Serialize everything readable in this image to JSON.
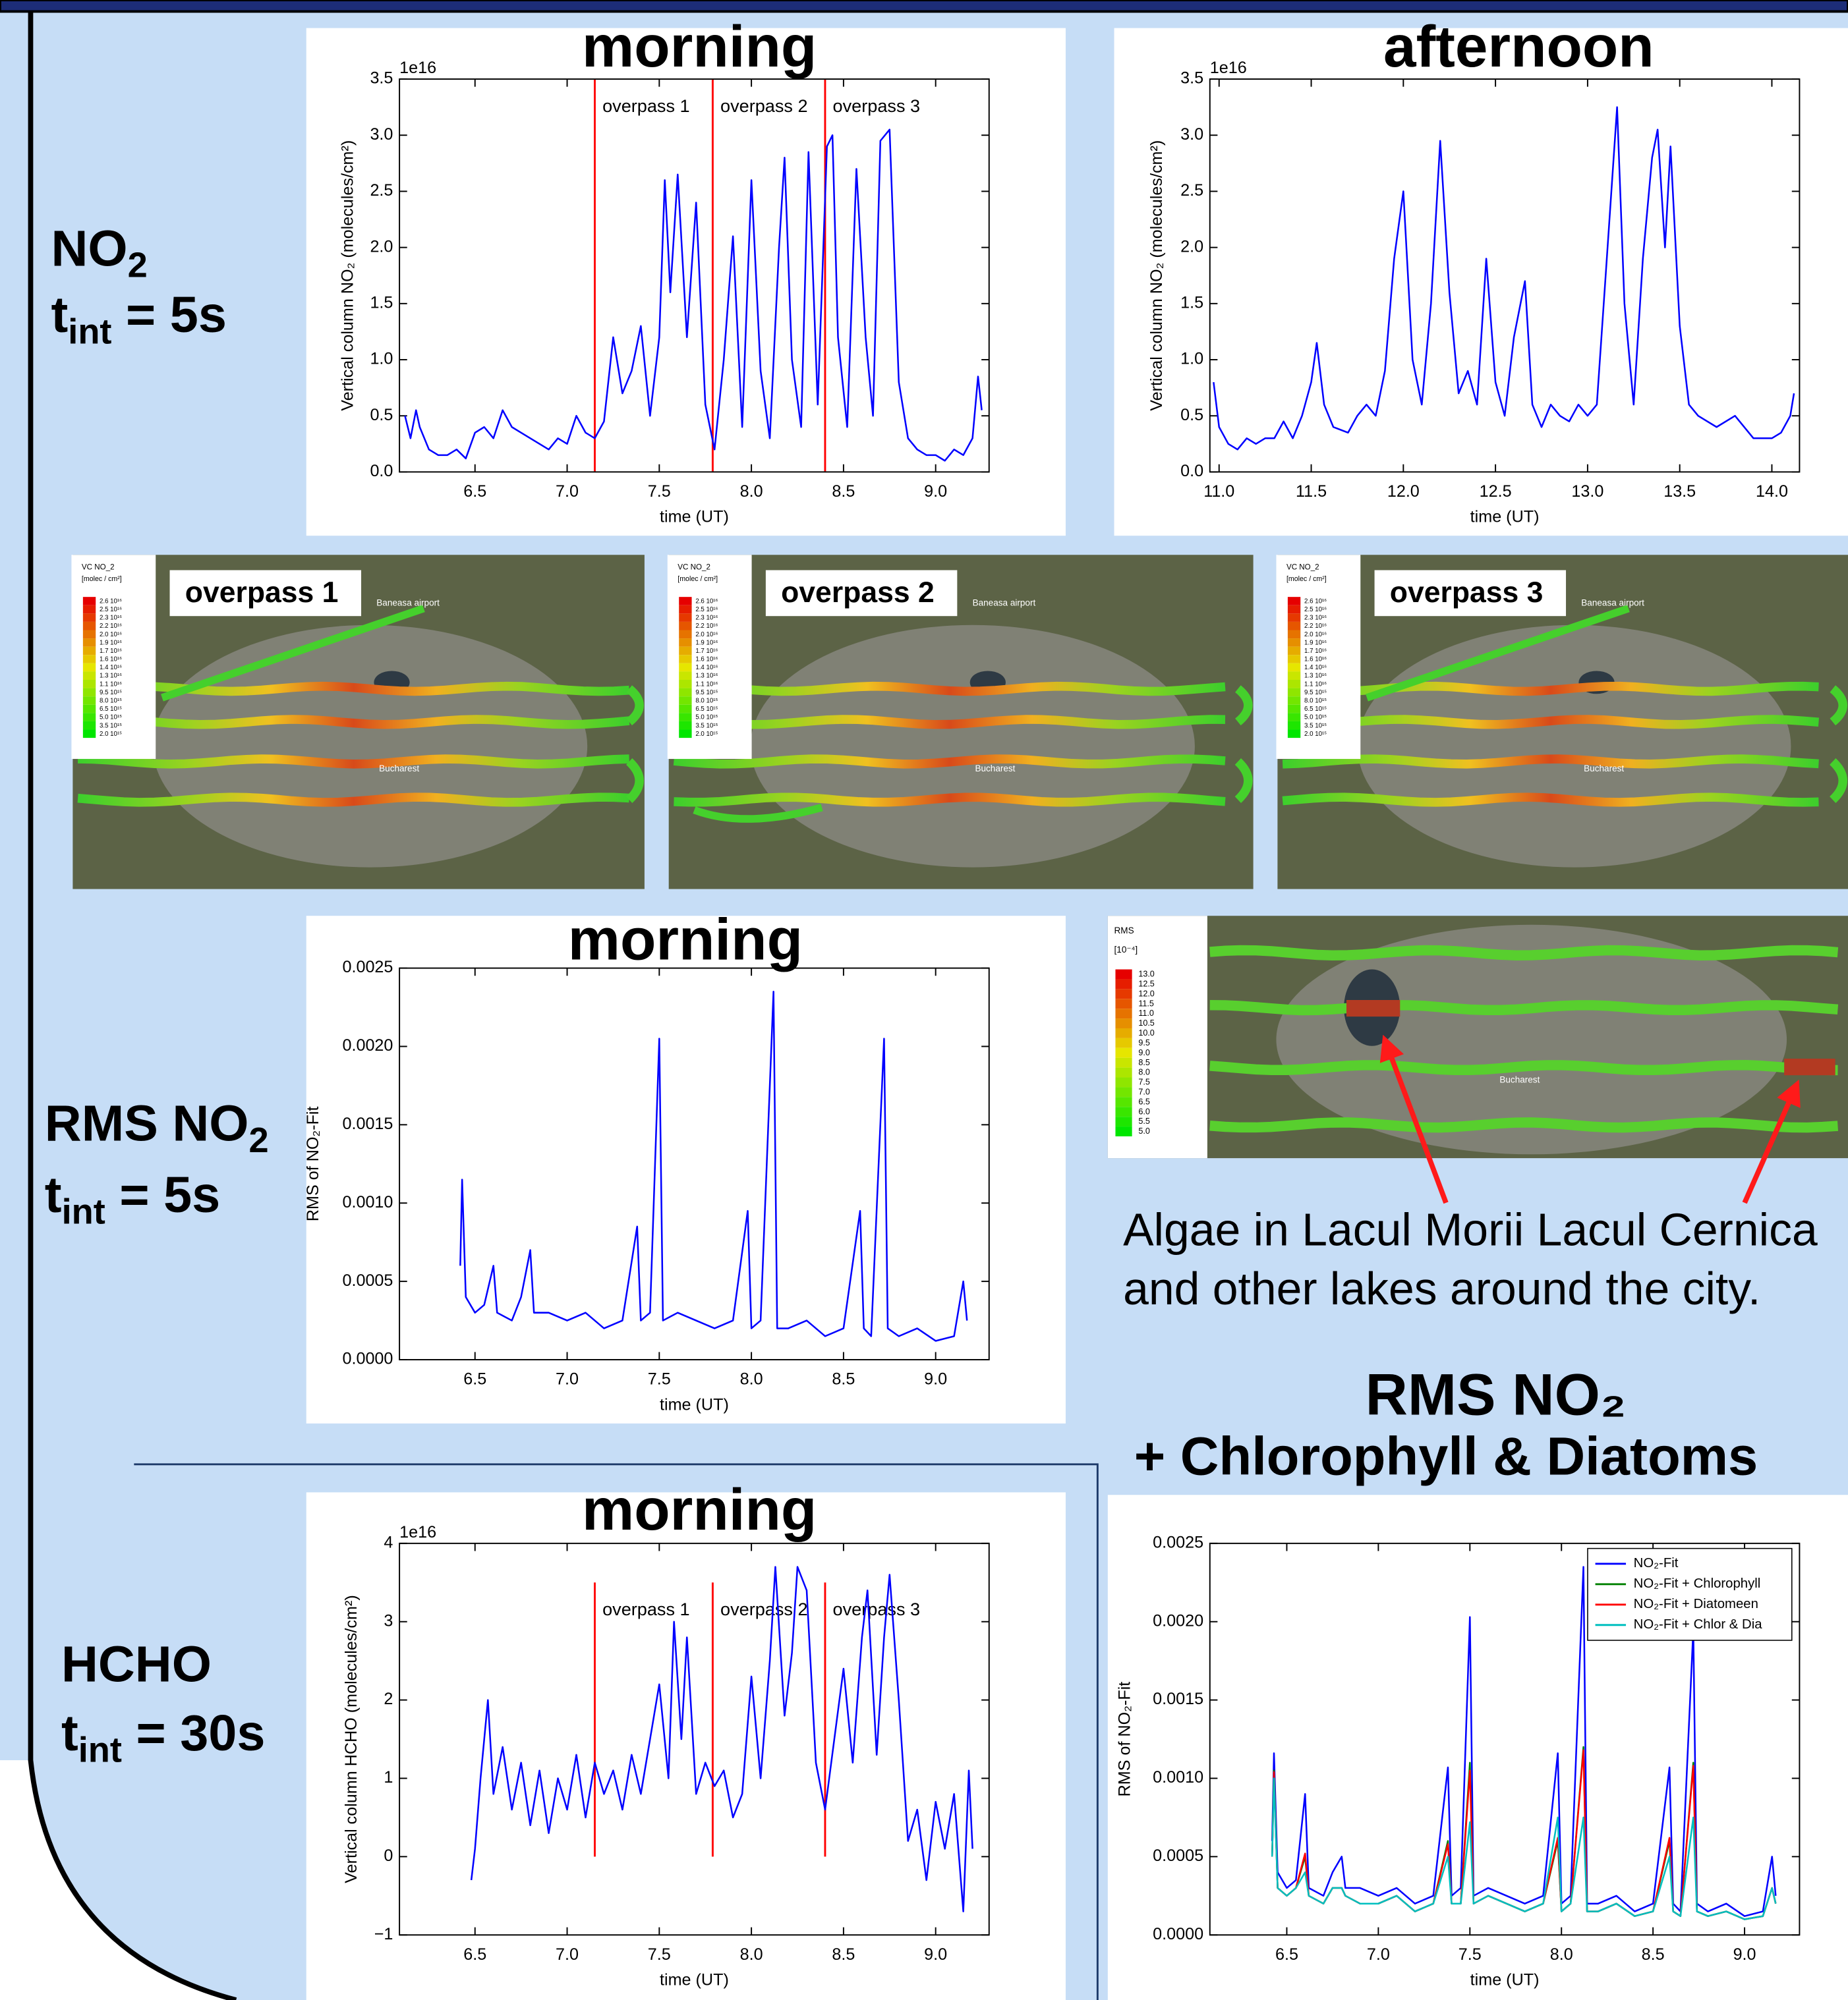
{
  "chart_data": [
    {
      "type": "line",
      "title": "morning",
      "offset_label": "1e16",
      "xlabel": "time (UT)",
      "ylabel": "Vertical column NO₂ (molecules/cm²)",
      "xlim": [
        6.09,
        9.29
      ],
      "ylim": [
        0,
        3.5
      ],
      "xticks": [
        6.5,
        {
          "value": 7,
          "label": "7.0"
        },
        7.5,
        {
          "value": 8,
          "label": "8.0"
        },
        8.5,
        {
          "value": 9,
          "label": "9.0"
        }
      ],
      "yticks": [
        {
          "value": 0,
          "label": "0.0"
        },
        0.5,
        {
          "value": 1,
          "label": "1.0"
        },
        1.5,
        {
          "value": 2,
          "label": "2.0"
        },
        2.5,
        {
          "value": 3,
          "label": "3.0"
        },
        3.5
      ],
      "grid": false,
      "vline_color": "#ff0000",
      "vlines": [
        {
          "x": 7.15,
          "label": "overpass 1"
        },
        {
          "x": 7.79,
          "label": "overpass 2"
        },
        {
          "x": 8.4,
          "label": "overpass 3"
        }
      ],
      "x": [
        6.12,
        6.15,
        6.18,
        6.2,
        6.25,
        6.3,
        6.35,
        6.4,
        6.45,
        6.5,
        6.55,
        6.6,
        6.65,
        6.7,
        6.75,
        6.8,
        6.85,
        6.9,
        6.95,
        7.0,
        7.05,
        7.1,
        7.15,
        7.2,
        7.25,
        7.3,
        7.35,
        7.4,
        7.45,
        7.5,
        7.53,
        7.56,
        7.6,
        7.65,
        7.7,
        7.75,
        7.8,
        7.85,
        7.9,
        7.95,
        8.0,
        8.05,
        8.1,
        8.15,
        8.18,
        8.22,
        8.27,
        8.31,
        8.36,
        8.41,
        8.44,
        8.47,
        8.52,
        8.57,
        8.62,
        8.66,
        8.7,
        8.75,
        8.8,
        8.85,
        8.9,
        8.95,
        9.0,
        9.05,
        9.1,
        9.15,
        9.2,
        9.23,
        9.25
      ],
      "series": [
        {
          "color": "#0000ff",
          "values": [
            0.5,
            0.3,
            0.55,
            0.4,
            0.2,
            0.15,
            0.15,
            0.2,
            0.12,
            0.35,
            0.4,
            0.3,
            0.55,
            0.4,
            0.35,
            0.3,
            0.25,
            0.2,
            0.3,
            0.25,
            0.5,
            0.35,
            0.3,
            0.45,
            1.2,
            0.7,
            0.9,
            1.3,
            0.5,
            1.2,
            2.6,
            1.6,
            2.65,
            1.2,
            2.4,
            0.6,
            0.2,
            1.0,
            2.1,
            0.4,
            2.6,
            0.9,
            0.3,
            2.0,
            2.8,
            1.0,
            0.4,
            2.85,
            0.6,
            2.9,
            3.0,
            1.2,
            0.4,
            2.7,
            1.2,
            0.5,
            2.95,
            3.05,
            0.8,
            0.3,
            0.2,
            0.15,
            0.15,
            0.1,
            0.2,
            0.15,
            0.3,
            0.85,
            0.55
          ]
        }
      ]
    },
    {
      "type": "line",
      "title": "afternoon",
      "offset_label": "1e16",
      "xlabel": "time (UT)",
      "ylabel": "Vertical column NO₂ (molecules/cm²)",
      "xlim": [
        10.95,
        14.15
      ],
      "ylim": [
        0,
        3.5
      ],
      "xticks": [
        {
          "value": 11,
          "label": "11.0"
        },
        11.5,
        {
          "value": 12,
          "label": "12.0"
        },
        12.5,
        {
          "value": 13,
          "label": "13.0"
        },
        13.5,
        {
          "value": 14,
          "label": "14.0"
        }
      ],
      "yticks": [
        {
          "value": 0,
          "label": "0.0"
        },
        0.5,
        {
          "value": 1,
          "label": "1.0"
        },
        1.5,
        {
          "value": 2,
          "label": "2.0"
        },
        2.5,
        {
          "value": 3,
          "label": "3.0"
        },
        3.5
      ],
      "grid": false,
      "x": [
        10.97,
        11.0,
        11.05,
        11.1,
        11.15,
        11.2,
        11.25,
        11.3,
        11.35,
        11.4,
        11.45,
        11.5,
        11.53,
        11.57,
        11.62,
        11.7,
        11.75,
        11.8,
        11.85,
        11.9,
        11.95,
        12.0,
        12.05,
        12.1,
        12.15,
        12.2,
        12.25,
        12.3,
        12.35,
        12.4,
        12.45,
        12.5,
        12.55,
        12.6,
        12.66,
        12.7,
        12.75,
        12.8,
        12.85,
        12.9,
        12.95,
        13.0,
        13.05,
        13.1,
        13.16,
        13.2,
        13.25,
        13.3,
        13.35,
        13.38,
        13.42,
        13.45,
        13.5,
        13.55,
        13.6,
        13.7,
        13.8,
        13.9,
        14.0,
        14.05,
        14.1,
        14.12
      ],
      "series": [
        {
          "color": "#0000ff",
          "values": [
            0.8,
            0.4,
            0.25,
            0.2,
            0.3,
            0.25,
            0.3,
            0.3,
            0.45,
            0.3,
            0.5,
            0.8,
            1.15,
            0.6,
            0.4,
            0.35,
            0.5,
            0.6,
            0.5,
            0.9,
            1.9,
            2.5,
            1.0,
            0.6,
            1.5,
            2.95,
            1.6,
            0.7,
            0.9,
            0.6,
            1.9,
            0.8,
            0.5,
            1.2,
            1.7,
            0.6,
            0.4,
            0.6,
            0.5,
            0.45,
            0.6,
            0.5,
            0.6,
            1.8,
            3.25,
            1.5,
            0.6,
            1.9,
            2.8,
            3.05,
            2.0,
            2.9,
            1.3,
            0.6,
            0.5,
            0.4,
            0.5,
            0.3,
            0.3,
            0.35,
            0.5,
            0.7
          ]
        }
      ]
    },
    {
      "type": "line",
      "title": "morning",
      "xlabel": "time (UT)",
      "ylabel": "RMS of NO₂-Fit",
      "xlim": [
        6.09,
        9.29
      ],
      "ylim": [
        0,
        0.0025
      ],
      "xticks": [
        6.5,
        {
          "value": 7,
          "label": "7.0"
        },
        7.5,
        {
          "value": 8,
          "label": "8.0"
        },
        8.5,
        {
          "value": 9,
          "label": "9.0"
        }
      ],
      "yticks": [
        {
          "value": 0,
          "label": "0.0000"
        },
        0.0005,
        {
          "value": 0.001,
          "label": "0.0010"
        },
        0.0015,
        {
          "value": 0.002,
          "label": "0.0020"
        },
        0.0025
      ],
      "grid": false,
      "x": [
        6.42,
        6.43,
        6.45,
        6.5,
        6.55,
        6.6,
        6.62,
        6.7,
        6.75,
        6.8,
        6.82,
        6.9,
        7.0,
        7.1,
        7.2,
        7.3,
        7.38,
        7.4,
        7.45,
        7.5,
        7.52,
        7.6,
        7.7,
        7.8,
        7.9,
        7.98,
        8.0,
        8.05,
        8.12,
        8.14,
        8.2,
        8.3,
        8.4,
        8.5,
        8.59,
        8.61,
        8.65,
        8.72,
        8.74,
        8.8,
        8.9,
        9.0,
        9.1,
        9.15,
        9.17
      ],
      "series": [
        {
          "color": "#0000ff",
          "values": [
            0.0006,
            0.00115,
            0.0004,
            0.0003,
            0.00035,
            0.0006,
            0.0003,
            0.00025,
            0.0004,
            0.0007,
            0.0003,
            0.0003,
            0.00025,
            0.0003,
            0.0002,
            0.00025,
            0.00085,
            0.00025,
            0.0003,
            0.00205,
            0.00025,
            0.0003,
            0.00025,
            0.0002,
            0.00025,
            0.00095,
            0.0002,
            0.00025,
            0.00235,
            0.0002,
            0.0002,
            0.00025,
            0.00015,
            0.0002,
            0.00095,
            0.0002,
            0.00015,
            0.00205,
            0.0002,
            0.00015,
            0.0002,
            0.00012,
            0.00015,
            0.0005,
            0.00025
          ]
        }
      ]
    },
    {
      "type": "line",
      "title": "morning",
      "offset_label": "1e16",
      "xlabel": "time (UT)",
      "ylabel": "Vertical column HCHO (molecules/cm²)",
      "xlim": [
        6.09,
        9.29
      ],
      "ylim": [
        -1,
        4
      ],
      "xticks": [
        6.5,
        {
          "value": 7,
          "label": "7.0"
        },
        7.5,
        {
          "value": 8,
          "label": "8.0"
        },
        8.5,
        {
          "value": 9,
          "label": "9.0"
        }
      ],
      "yticks": [
        {
          "value": -1,
          "label": "−1"
        },
        0,
        1,
        2,
        3,
        4
      ],
      "grid": false,
      "vline_color": "#ff0000",
      "vline_ylim": [
        0,
        3.5
      ],
      "vlines": [
        {
          "x": 7.15,
          "label": "overpass 1"
        },
        {
          "x": 7.79,
          "label": "overpass 2"
        },
        {
          "x": 8.4,
          "label": "overpass 3"
        }
      ],
      "x": [
        6.48,
        6.5,
        6.53,
        6.57,
        6.6,
        6.65,
        6.7,
        6.75,
        6.8,
        6.85,
        6.9,
        6.95,
        7.0,
        7.05,
        7.1,
        7.15,
        7.2,
        7.25,
        7.3,
        7.35,
        7.4,
        7.45,
        7.5,
        7.55,
        7.58,
        7.62,
        7.65,
        7.7,
        7.75,
        7.8,
        7.85,
        7.9,
        7.95,
        8.0,
        8.05,
        8.1,
        8.13,
        8.18,
        8.22,
        8.25,
        8.3,
        8.35,
        8.4,
        8.45,
        8.5,
        8.55,
        8.6,
        8.63,
        8.68,
        8.72,
        8.75,
        8.8,
        8.85,
        8.9,
        8.95,
        9.0,
        9.05,
        9.1,
        9.15,
        9.18,
        9.2
      ],
      "series": [
        {
          "color": "#0000ff",
          "values": [
            -0.3,
            0.1,
            1.0,
            2.0,
            0.8,
            1.4,
            0.6,
            1.2,
            0.4,
            1.1,
            0.3,
            1.0,
            0.6,
            1.3,
            0.5,
            1.2,
            0.8,
            1.1,
            0.6,
            1.3,
            0.8,
            1.5,
            2.2,
            1.0,
            3.0,
            1.5,
            2.8,
            0.8,
            1.2,
            0.9,
            1.1,
            0.5,
            0.8,
            2.3,
            1.0,
            2.5,
            3.7,
            1.8,
            2.6,
            3.7,
            3.4,
            1.2,
            0.6,
            1.5,
            2.4,
            1.2,
            2.8,
            3.4,
            1.3,
            2.8,
            3.6,
            2.0,
            0.2,
            0.6,
            -0.3,
            0.7,
            0.1,
            0.8,
            -0.7,
            1.1,
            0.1
          ]
        }
      ]
    },
    {
      "type": "line",
      "title": "RMS NO₂",
      "subtitle": "+ Chlorophyll & Diatoms",
      "xlabel": "time (UT)",
      "ylabel": "RMS of NO₂-Fit",
      "xlim": [
        6.08,
        9.3
      ],
      "ylim": [
        0,
        0.0025
      ],
      "xticks": [
        6.5,
        {
          "value": 7,
          "label": "7.0"
        },
        7.5,
        {
          "value": 8,
          "label": "8.0"
        },
        8.5,
        {
          "value": 9,
          "label": "9.0"
        }
      ],
      "yticks": [
        {
          "value": 0,
          "label": "0.0000"
        },
        0.0005,
        {
          "value": 0.001,
          "label": "0.0010"
        },
        0.0015,
        {
          "value": 0.002,
          "label": "0.0020"
        },
        0.0025
      ],
      "grid": false,
      "legend": "upper right",
      "x": [
        6.42,
        6.43,
        6.45,
        6.5,
        6.55,
        6.6,
        6.62,
        6.7,
        6.75,
        6.8,
        6.82,
        6.9,
        7.0,
        7.1,
        7.2,
        7.3,
        7.38,
        7.4,
        7.45,
        7.5,
        7.52,
        7.6,
        7.7,
        7.8,
        7.9,
        7.98,
        8.0,
        8.05,
        8.12,
        8.14,
        8.2,
        8.3,
        8.4,
        8.5,
        8.59,
        8.61,
        8.65,
        8.72,
        8.74,
        8.8,
        8.9,
        9.0,
        9.1,
        9.15,
        9.17
      ],
      "series": [
        {
          "name": "NO₂-Fit",
          "color": "#0000ff",
          "values": [
            0.0006,
            0.00116,
            0.0004,
            0.0003,
            0.00035,
            0.0009,
            0.0003,
            0.00025,
            0.0004,
            0.0005,
            0.0003,
            0.0003,
            0.00025,
            0.0003,
            0.0002,
            0.00025,
            0.00107,
            0.00025,
            0.0003,
            0.00203,
            0.00025,
            0.0003,
            0.00025,
            0.0002,
            0.00025,
            0.00116,
            0.0002,
            0.00025,
            0.00235,
            0.0002,
            0.0002,
            0.00025,
            0.00015,
            0.0002,
            0.00107,
            0.0002,
            0.00015,
            0.00195,
            0.0002,
            0.00015,
            0.0002,
            0.00012,
            0.00015,
            0.0005,
            0.00025
          ]
        },
        {
          "name": "NO₂-Fit + Chlorophyll",
          "color": "#008000",
          "values": [
            0.0005,
            0.00105,
            0.0003,
            0.00025,
            0.0003,
            0.0005,
            0.00025,
            0.0002,
            0.0003,
            0.0003,
            0.00025,
            0.0002,
            0.0002,
            0.00025,
            0.00015,
            0.0002,
            0.0006,
            0.0002,
            0.0002,
            0.0011,
            0.0002,
            0.00025,
            0.0002,
            0.00015,
            0.0002,
            0.0006,
            0.00015,
            0.0002,
            0.0012,
            0.00015,
            0.00015,
            0.0002,
            0.00012,
            0.00015,
            0.0006,
            0.00015,
            0.00012,
            0.0011,
            0.00015,
            0.00012,
            0.00015,
            0.0001,
            0.00012,
            0.0003,
            0.0002
          ]
        },
        {
          "name": "NO₂-Fit + Diatomeen",
          "color": "#ff0000",
          "values": [
            0.0005,
            0.00104,
            0.0003,
            0.00025,
            0.0003,
            0.00052,
            0.00025,
            0.0002,
            0.0003,
            0.0003,
            0.00025,
            0.0002,
            0.0002,
            0.00025,
            0.00015,
            0.0002,
            0.00058,
            0.0002,
            0.0002,
            0.00105,
            0.0002,
            0.00025,
            0.0002,
            0.00015,
            0.0002,
            0.00062,
            0.00015,
            0.0002,
            0.00118,
            0.00015,
            0.00015,
            0.0002,
            0.00012,
            0.00015,
            0.00062,
            0.00015,
            0.00012,
            0.00108,
            0.00015,
            0.00012,
            0.00015,
            0.0001,
            0.00012,
            0.0003,
            0.0002
          ]
        },
        {
          "name": "NO₂-Fit + Chlor & Dia",
          "color": "#00bfbf",
          "values": [
            0.0005,
            0.001,
            0.0003,
            0.00025,
            0.0003,
            0.0004,
            0.00025,
            0.0002,
            0.0003,
            0.0003,
            0.00025,
            0.0002,
            0.0002,
            0.00025,
            0.00015,
            0.0002,
            0.0005,
            0.0002,
            0.0002,
            0.00072,
            0.0002,
            0.00025,
            0.0002,
            0.00015,
            0.0002,
            0.00075,
            0.00015,
            0.0002,
            0.00075,
            0.00015,
            0.00015,
            0.0002,
            0.00012,
            0.00015,
            0.0005,
            0.00015,
            0.00012,
            0.00075,
            0.00015,
            0.00012,
            0.00015,
            0.0001,
            0.00012,
            0.0003,
            0.0002
          ]
        }
      ]
    }
  ],
  "row_labels": [
    {
      "main": "NO",
      "main_sub": "2",
      "t": "t",
      "t_sub": "int",
      "t_rest": " = 5s"
    },
    {
      "main": "RMS NO",
      "main_sub": "2",
      "t": "t",
      "t_sub": "int",
      "t_rest": " = 5s"
    },
    {
      "main": "HCHO",
      "main_sub": "",
      "t": "t",
      "t_sub": "int",
      "t_rest": " = 30s"
    }
  ],
  "maps": {
    "overpasses": [
      "overpass 1",
      "overpass 2",
      "overpass 3"
    ],
    "no2_legend_title": "VC NO_2",
    "no2_legend_unit": "[molec / cm²]",
    "no2_legend_labels": [
      "2.6 10¹⁶",
      "2.5 10¹⁶",
      "2.3 10¹⁶",
      "2.2 10¹⁶",
      "2.0 10¹⁶",
      "1.9 10¹⁶",
      "1.7 10¹⁶",
      "1.6 10¹⁶",
      "1.4 10¹⁶",
      "1.3 10¹⁶",
      "1.1 10¹⁶",
      "9.5 10¹⁵",
      "8.0 10¹⁵",
      "6.5 10¹⁵",
      "5.0 10¹⁵",
      "3.5 10¹⁵",
      "2.0 10¹⁵"
    ],
    "airport": "Baneasa airport",
    "city": "Bucharest",
    "rms_legend_title": "RMS",
    "rms_legend_unit": "[10⁻⁴]",
    "rms_legend_labels": [
      "13.0",
      "12.5",
      "12.0",
      "11.5",
      "11.0",
      "10.5",
      "10.0",
      "9.5",
      "9.0",
      "8.5",
      "8.0",
      "7.5",
      "7.0",
      "6.5",
      "6.0",
      "5.5",
      "5.0"
    ]
  },
  "annotation": [
    "Algae in Lacul Morii Lacul Cernica",
    "and other lakes around the city."
  ]
}
